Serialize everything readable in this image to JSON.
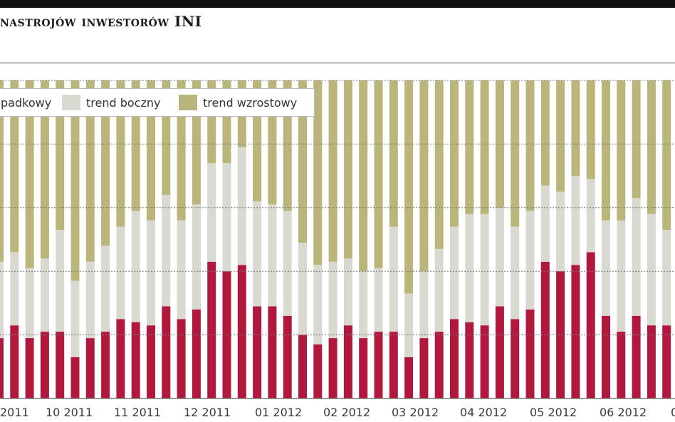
{
  "title": "nastrojów inwestorów INI",
  "colors": {
    "spadkowy": "#b0183e",
    "boczny": "#d9d9d2",
    "wzrostowy": "#b9b57b",
    "grid": "#7a7a7a"
  },
  "chart_data": {
    "type": "bar",
    "stacked": true,
    "title": "nastrojów inwestorów INI",
    "ylim": [
      0,
      100
    ],
    "ylabel": "",
    "xlabel": "",
    "grid": true,
    "legend_position": "top-left",
    "legend": [
      {
        "key": "spadkowy",
        "label": "padkowy"
      },
      {
        "key": "boczny",
        "label": "trend boczny"
      },
      {
        "key": "wzrostowy",
        "label": "trend wzrostowy"
      }
    ],
    "month_labels": [
      "2011",
      "10 2011",
      "11 2011",
      "12 2011",
      "01 2012",
      "02 2012",
      "03 2012",
      "04 2012",
      "05 2012",
      "06 2012",
      "0"
    ],
    "series": [
      {
        "key": "spadkowy",
        "values": [
          19,
          23,
          19,
          21,
          21,
          13,
          19,
          21,
          25,
          24,
          23,
          29,
          25,
          28,
          43,
          40,
          42,
          29,
          29,
          26,
          20,
          17,
          19,
          23,
          19,
          21,
          21,
          13,
          19,
          21,
          25,
          24,
          23,
          29,
          25,
          28,
          43,
          40,
          42,
          46,
          26,
          21,
          26,
          23,
          23,
          32
        ]
      },
      {
        "key": "boczny",
        "values": [
          24,
          23,
          22,
          23,
          32,
          24,
          24,
          27,
          29,
          35,
          33,
          35,
          31,
          33,
          31,
          34,
          37,
          33,
          32,
          33,
          29,
          25,
          24,
          21,
          21,
          20,
          33,
          20,
          21,
          26,
          29,
          34,
          35,
          31,
          29,
          31,
          24,
          25,
          28,
          23,
          30,
          35,
          37,
          35,
          30,
          21
        ]
      },
      {
        "key": "wzrostowy",
        "values": [
          57,
          54,
          59,
          56,
          47,
          63,
          57,
          52,
          46,
          41,
          44,
          36,
          44,
          39,
          26,
          26,
          21,
          38,
          39,
          41,
          51,
          58,
          57,
          56,
          60,
          59,
          46,
          67,
          60,
          53,
          46,
          42,
          42,
          40,
          46,
          41,
          33,
          35,
          30,
          31,
          44,
          44,
          37,
          42,
          47,
          47
        ]
      }
    ]
  }
}
